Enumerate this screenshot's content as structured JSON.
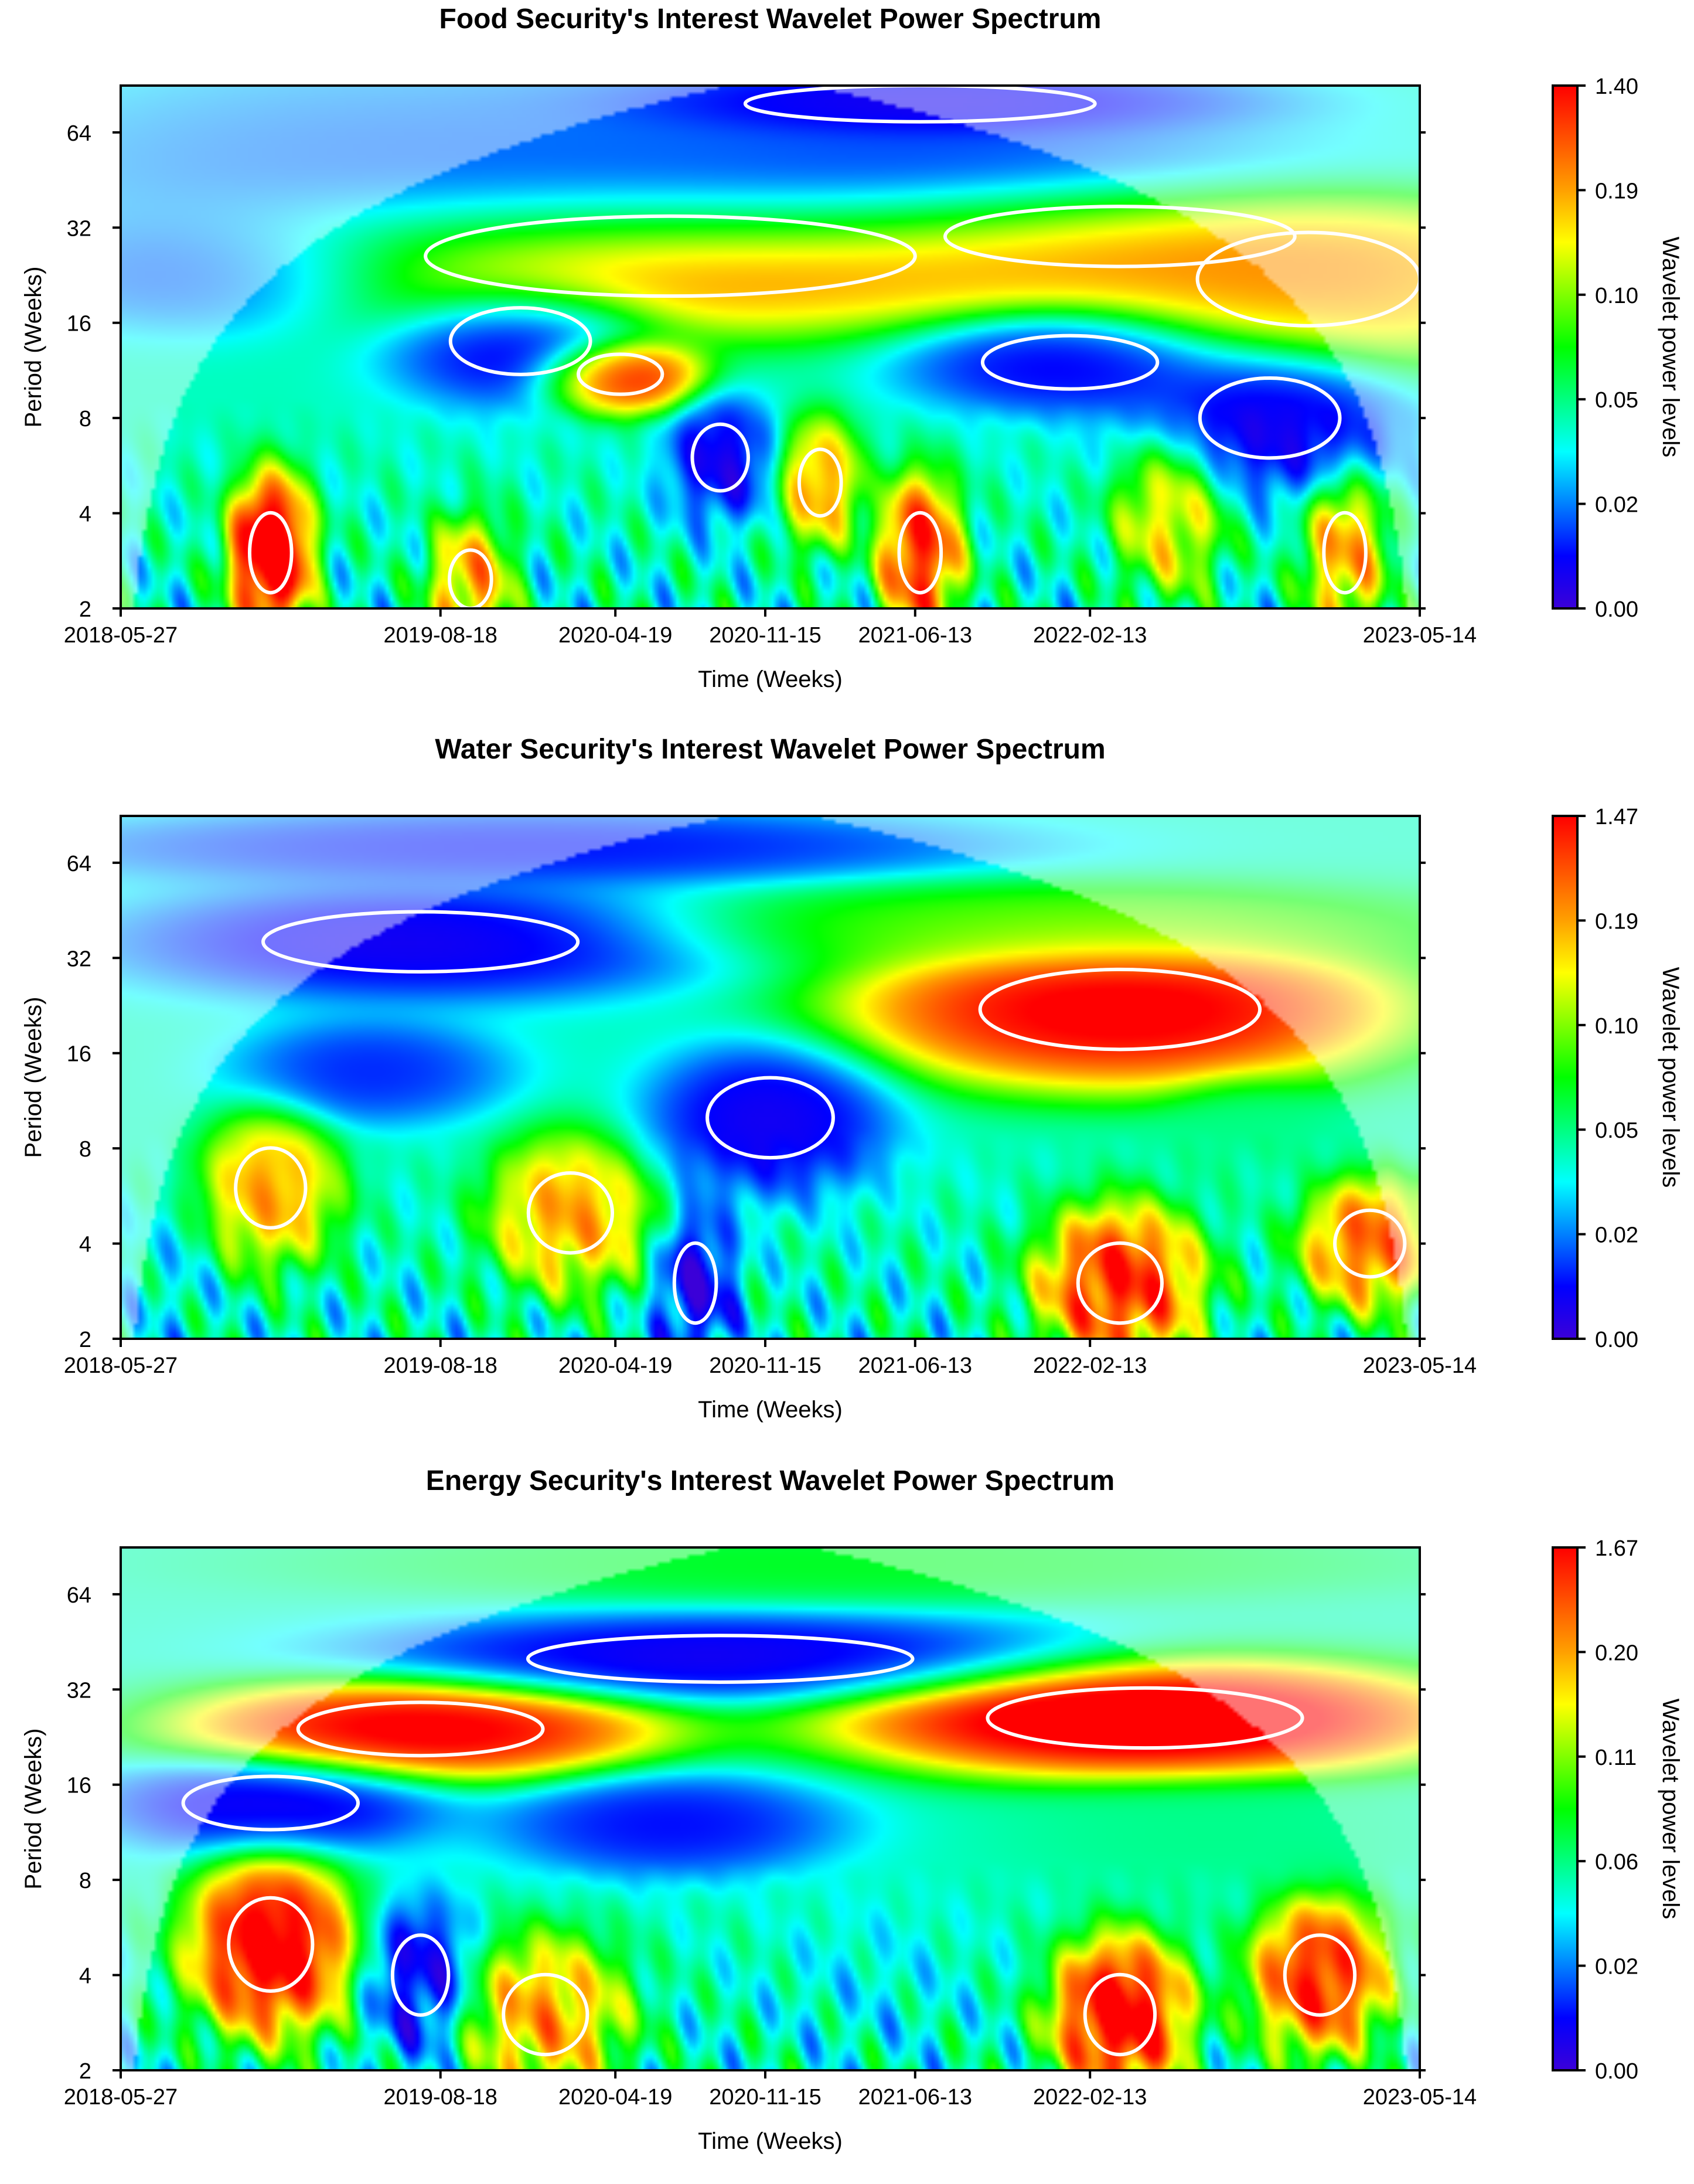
{
  "colors": {
    "colorbar": [
      "#3b00d8",
      "#0000ff",
      "#0080ff",
      "#00ffff",
      "#00ff80",
      "#00ff00",
      "#80ff00",
      "#ffff00",
      "#ffa000",
      "#ff5000",
      "#ff0000"
    ],
    "contour": "#ffffff",
    "coi_shade": "#ffffff"
  },
  "chart_data": [
    {
      "type": "heatmap",
      "title": "Food Security's Interest Wavelet Power Spectrum",
      "xlabel": "Time (Weeks)",
      "ylabel": "Period (Weeks)",
      "colorbar_label": "Wavelet power levels",
      "x_ticks": [
        "2018-05-27",
        "2019-08-18",
        "2020-04-19",
        "2020-11-15",
        "2021-06-13",
        "2022-02-13",
        "2023-05-14"
      ],
      "x_tick_weeks": [
        0,
        64,
        99,
        129,
        159,
        194,
        260
      ],
      "x_range_weeks": [
        0,
        260
      ],
      "y_ticks": [
        2,
        4,
        8,
        16,
        32,
        64
      ],
      "y_scale": "log2",
      "y_range": [
        2,
        90
      ],
      "colorbar_ticks": [
        "0.00",
        "0.02",
        "0.05",
        "0.10",
        "0.19",
        "1.40"
      ],
      "cells": [
        {
          "t": 55,
          "p": 48,
          "a": 60,
          "b": 0.9,
          "v": 0.15
        },
        {
          "t": 150,
          "p": 40,
          "a": 80,
          "b": 0.55,
          "v": 0.03
        },
        {
          "t": 110,
          "p": 26,
          "a": 70,
          "b": 0.6,
          "v": 1.0
        },
        {
          "t": 200,
          "p": 30,
          "a": 50,
          "b": 0.45,
          "v": 1.0
        },
        {
          "t": 240,
          "p": 22,
          "a": 35,
          "b": 0.7,
          "v": 0.9
        },
        {
          "t": 160,
          "p": 80,
          "a": 50,
          "b": 0.3,
          "v": 0.0
        },
        {
          "t": 20,
          "p": 24,
          "a": 30,
          "b": 0.5,
          "v": 0.04
        },
        {
          "t": 80,
          "p": 14,
          "a": 20,
          "b": 0.5,
          "v": 0.0
        },
        {
          "t": 190,
          "p": 12,
          "a": 25,
          "b": 0.4,
          "v": 0.02
        },
        {
          "t": 230,
          "p": 8,
          "a": 20,
          "b": 0.6,
          "v": 0.0
        },
        {
          "t": 100,
          "p": 11,
          "a": 12,
          "b": 0.3,
          "v": 1.2
        },
        {
          "t": 30,
          "p": 3,
          "a": 6,
          "b": 0.6,
          "v": 1.3
        },
        {
          "t": 70,
          "p": 2.4,
          "a": 6,
          "b": 0.5,
          "v": 0.9
        },
        {
          "t": 160,
          "p": 3,
          "a": 6,
          "b": 0.6,
          "v": 1.1
        },
        {
          "t": 120,
          "p": 6,
          "a": 8,
          "b": 0.5,
          "v": 0.01
        },
        {
          "t": 140,
          "p": 5,
          "a": 6,
          "b": 0.5,
          "v": 0.9
        },
        {
          "t": 210,
          "p": 4,
          "a": 8,
          "b": 0.6,
          "v": 0.8
        },
        {
          "t": 245,
          "p": 3,
          "a": 6,
          "b": 0.6,
          "v": 0.9
        }
      ]
    },
    {
      "type": "heatmap",
      "title": "Water Security's Interest Wavelet Power Spectrum",
      "xlabel": "Time (Weeks)",
      "ylabel": "Period (Weeks)",
      "colorbar_label": "Wavelet power levels",
      "x_ticks": [
        "2018-05-27",
        "2019-08-18",
        "2020-04-19",
        "2020-11-15",
        "2021-06-13",
        "2022-02-13",
        "2023-05-14"
      ],
      "x_tick_weeks": [
        0,
        64,
        99,
        129,
        159,
        194,
        260
      ],
      "x_range_weeks": [
        0,
        260
      ],
      "y_ticks": [
        2,
        4,
        8,
        16,
        32,
        64
      ],
      "y_scale": "log2",
      "y_range": [
        2,
        90
      ],
      "colorbar_ticks": [
        "0.00",
        "0.02",
        "0.05",
        "0.10",
        "0.19",
        "1.47"
      ],
      "cells": [
        {
          "t": 60,
          "p": 36,
          "a": 45,
          "b": 0.45,
          "v": 0.0
        },
        {
          "t": 200,
          "p": 22,
          "a": 40,
          "b": 0.6,
          "v": 1.2
        },
        {
          "t": 190,
          "p": 40,
          "a": 60,
          "b": 0.35,
          "v": 0.6
        },
        {
          "t": 80,
          "p": 72,
          "a": 70,
          "b": 0.3,
          "v": 0.06
        },
        {
          "t": 130,
          "p": 10,
          "a": 18,
          "b": 0.6,
          "v": 0.0
        },
        {
          "t": 50,
          "p": 14,
          "a": 20,
          "b": 0.4,
          "v": 0.08
        },
        {
          "t": 30,
          "p": 6,
          "a": 10,
          "b": 0.6,
          "v": 0.9
        },
        {
          "t": 90,
          "p": 5,
          "a": 12,
          "b": 0.6,
          "v": 0.9
        },
        {
          "t": 200,
          "p": 3,
          "a": 12,
          "b": 0.6,
          "v": 1.1
        },
        {
          "t": 250,
          "p": 4,
          "a": 10,
          "b": 0.5,
          "v": 1.0
        },
        {
          "t": 115,
          "p": 3,
          "a": 6,
          "b": 0.6,
          "v": 0.0
        },
        {
          "t": 225,
          "p": 9,
          "a": 12,
          "b": 0.4,
          "v": 0.4
        },
        {
          "t": 10,
          "p": 3,
          "a": 6,
          "b": 0.6,
          "v": 0.3
        }
      ]
    },
    {
      "type": "heatmap",
      "title": "Energy Security's Interest Wavelet Power Spectrum",
      "xlabel": "Time (Weeks)",
      "ylabel": "Period (Weeks)",
      "colorbar_label": "Wavelet power levels",
      "x_ticks": [
        "2018-05-27",
        "2019-08-18",
        "2020-04-19",
        "2020-11-15",
        "2021-06-13",
        "2022-02-13",
        "2023-05-14"
      ],
      "x_tick_weeks": [
        0,
        64,
        99,
        129,
        159,
        194,
        260
      ],
      "x_range_weeks": [
        0,
        260
      ],
      "y_ticks": [
        2,
        4,
        8,
        16,
        32,
        64
      ],
      "y_scale": "log2",
      "y_range": [
        2,
        90
      ],
      "colorbar_ticks": [
        "0.00",
        "0.02",
        "0.06",
        "0.11",
        "0.20",
        "1.67"
      ],
      "cells": [
        {
          "t": 60,
          "p": 24,
          "a": 35,
          "b": 0.4,
          "v": 1.2
        },
        {
          "t": 205,
          "p": 26,
          "a": 45,
          "b": 0.45,
          "v": 1.3
        },
        {
          "t": 120,
          "p": 40,
          "a": 55,
          "b": 0.35,
          "v": 0.0
        },
        {
          "t": 150,
          "p": 80,
          "a": 80,
          "b": 0.3,
          "v": 0.5
        },
        {
          "t": 30,
          "p": 14,
          "a": 25,
          "b": 0.4,
          "v": 0.0
        },
        {
          "t": 110,
          "p": 12,
          "a": 25,
          "b": 0.4,
          "v": 0.05
        },
        {
          "t": 220,
          "p": 11,
          "a": 30,
          "b": 0.4,
          "v": 0.4
        },
        {
          "t": 30,
          "p": 5,
          "a": 12,
          "b": 0.7,
          "v": 1.2
        },
        {
          "t": 85,
          "p": 3,
          "a": 12,
          "b": 0.6,
          "v": 0.9
        },
        {
          "t": 200,
          "p": 3,
          "a": 10,
          "b": 0.6,
          "v": 1.2
        },
        {
          "t": 240,
          "p": 4,
          "a": 10,
          "b": 0.6,
          "v": 1.1
        },
        {
          "t": 150,
          "p": 4,
          "a": 12,
          "b": 0.6,
          "v": 0.3
        },
        {
          "t": 60,
          "p": 4,
          "a": 8,
          "b": 0.6,
          "v": 0.02
        }
      ]
    }
  ]
}
